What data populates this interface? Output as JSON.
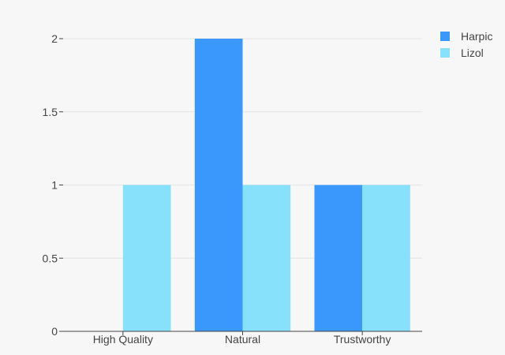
{
  "chart_data": {
    "type": "bar",
    "categories": [
      "High Quality",
      "Natural",
      "Trustworthy"
    ],
    "series": [
      {
        "name": "Harpic",
        "values": [
          0,
          2,
          1
        ],
        "color": "#3a98fd"
      },
      {
        "name": "Lizol",
        "values": [
          1,
          1,
          1
        ],
        "color": "#87e1fb"
      }
    ],
    "ylim": [
      0,
      2
    ],
    "yticks": [
      0,
      0.5,
      1,
      1.5,
      2
    ],
    "ytick_labels": [
      "0",
      "0.5",
      "1",
      "1.5",
      "2"
    ],
    "grid": true,
    "legend_position": "top-right",
    "title": "",
    "xlabel": "",
    "ylabel": ""
  }
}
